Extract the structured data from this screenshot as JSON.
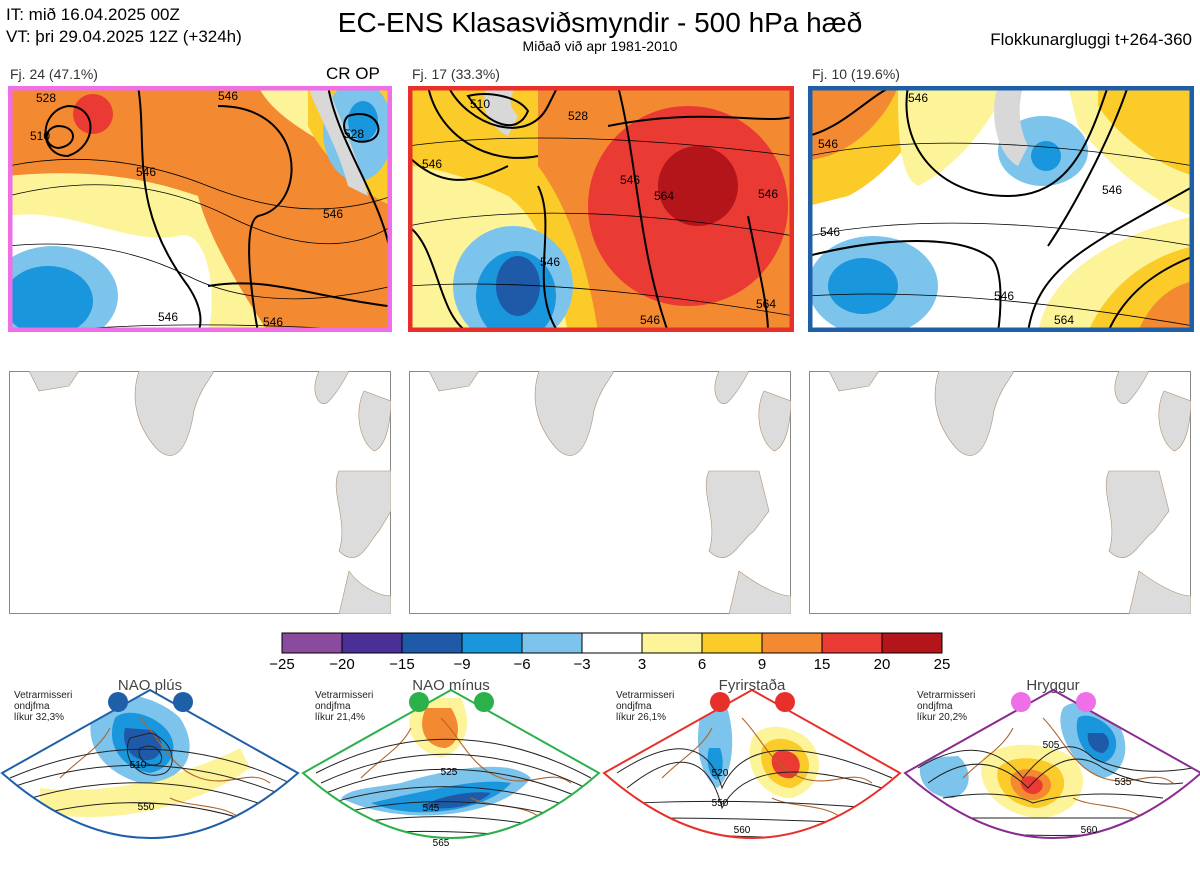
{
  "header": {
    "it_line": "IT: mið 16.04.2025 00Z",
    "vt_line": "VT: þri 29.04.2025 12Z  (+324h)",
    "title": "EC-ENS Klasasviðsmyndir - 500 hPa hæð",
    "subtitle": "Miðað við apr 1981-2010",
    "window": "Flokkunargluggi t+264-360"
  },
  "clusters": [
    {
      "label": "Fj. 24 (47.1%)",
      "border_color": "#ef6fe8",
      "tag": "CR OP",
      "contour_labels": [
        "528",
        "510",
        "546",
        "546",
        "546",
        "528",
        "546",
        "546"
      ]
    },
    {
      "label": "Fj. 17 (33.3%)",
      "border_color": "#e8302a",
      "tag": "",
      "contour_labels": [
        "510",
        "528",
        "546",
        "546",
        "564",
        "546",
        "546",
        "564",
        "546"
      ]
    },
    {
      "label": "Fj. 10 (19.6%)",
      "border_color": "#1f5fa8",
      "tag": "",
      "contour_labels": [
        "546",
        "546",
        "546",
        "546",
        "546",
        "564"
      ]
    }
  ],
  "colorbar": {
    "ticks": [
      "−25",
      "−20",
      "−15",
      "−9",
      "−6",
      "−3",
      "3",
      "6",
      "9",
      "15",
      "20",
      "25"
    ],
    "colors": [
      "#8a4a9e",
      "#4a2f96",
      "#1f5aa8",
      "#1a96dc",
      "#7cc4ec",
      "#ffffff",
      "#fdf49a",
      "#fbcb2a",
      "#f38a32",
      "#e93a34",
      "#b3151b"
    ]
  },
  "regimes": [
    {
      "name": "NAO plús",
      "info": [
        "Vetrarmisseri",
        "ondjfma",
        "líkur 32,3%"
      ],
      "dot_color": "#1f5fa8",
      "border_color": "#1f5fa8",
      "contour_labels": [
        "510",
        "550"
      ]
    },
    {
      "name": "NAO mínus",
      "info": [
        "Vetrarmisseri",
        "ondjfma",
        "líkur 21,4%"
      ],
      "dot_color": "#2bb04a",
      "border_color": "#2bb04a",
      "contour_labels": [
        "525",
        "545",
        "565"
      ]
    },
    {
      "name": "Fyrirstaða",
      "info": [
        "Vetrarmisseri",
        "ondjfma",
        "líkur 26,1%"
      ],
      "dot_color": "#e8302a",
      "border_color": "#e8302a",
      "contour_labels": [
        "520",
        "550",
        "560"
      ]
    },
    {
      "name": "Hryggur",
      "info": [
        "Vetrarmisseri",
        "ondjfma",
        "líkur 20,2%"
      ],
      "dot_color": "#ef6fe8",
      "border_color": "#8a2c8f",
      "contour_labels": [
        "505",
        "535",
        "560"
      ]
    }
  ]
}
